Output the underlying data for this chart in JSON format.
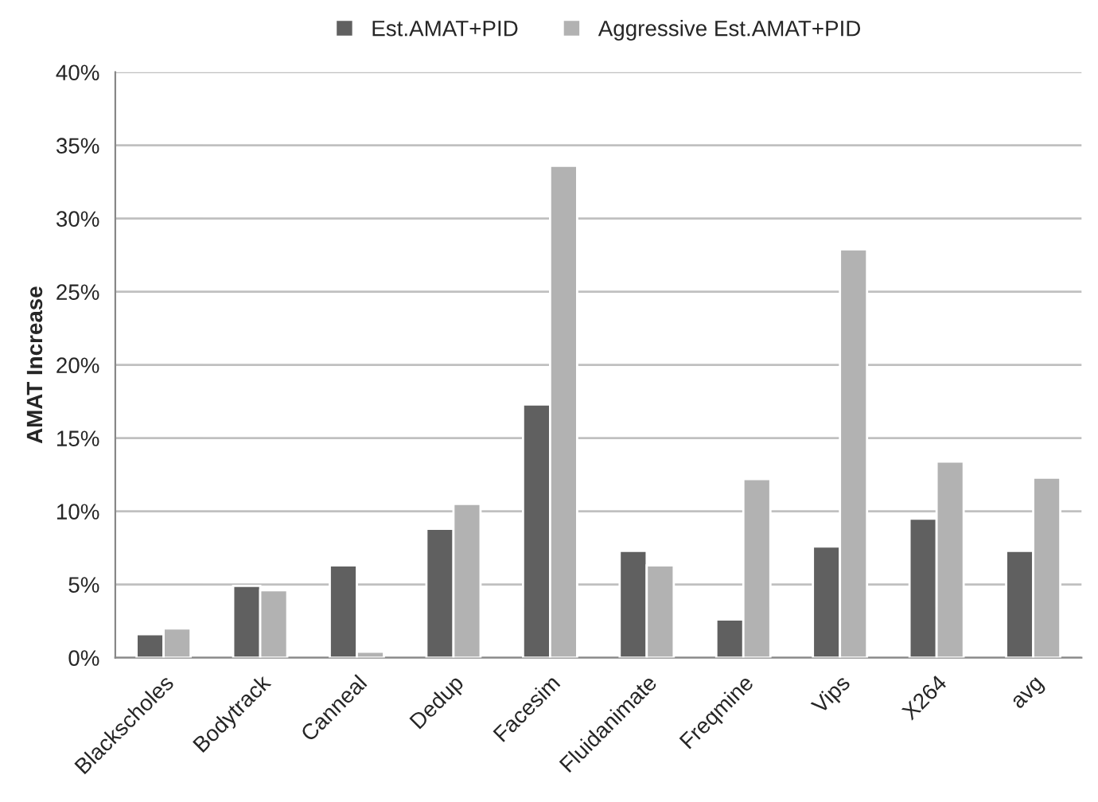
{
  "chart_data": {
    "type": "bar",
    "ylabel": "AMAT Increase",
    "categories": [
      "Blackscholes",
      "Bodytrack",
      "Canneal",
      "Dedup",
      "Facesim",
      "Fluidanimate",
      "Freqmine",
      "Vips",
      "X264",
      "avg"
    ],
    "series": [
      {
        "name": "Est.AMAT+PID",
        "color": "#606060",
        "values": [
          1.6,
          4.9,
          6.3,
          8.8,
          17.3,
          7.3,
          2.6,
          7.6,
          9.5,
          7.3
        ]
      },
      {
        "name": "Aggressive Est.AMAT+PID",
        "color": "#b2b2b2",
        "values": [
          2.0,
          4.6,
          0.4,
          10.5,
          33.6,
          6.3,
          12.2,
          27.9,
          13.4,
          12.3
        ]
      }
    ],
    "ylim": [
      0,
      40
    ],
    "yticks": [
      {
        "value": 0,
        "label": "0%"
      },
      {
        "value": 5,
        "label": "5%"
      },
      {
        "value": 10,
        "label": "10%"
      },
      {
        "value": 15,
        "label": "15%"
      },
      {
        "value": 20,
        "label": "20%"
      },
      {
        "value": 25,
        "label": "25%"
      },
      {
        "value": 30,
        "label": "30%"
      },
      {
        "value": 35,
        "label": "35%"
      },
      {
        "value": 40,
        "label": "40%"
      }
    ],
    "grid": "y",
    "legend": "top"
  }
}
